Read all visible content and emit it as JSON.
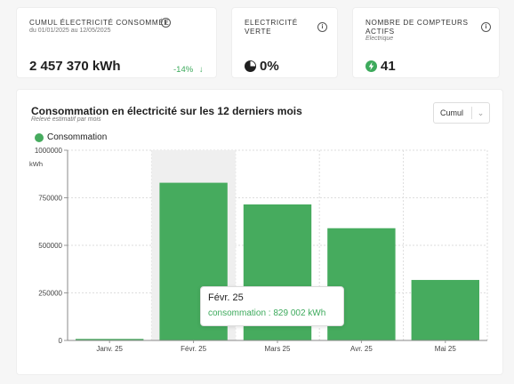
{
  "kpis": {
    "consumption": {
      "title": "CUMUL ÉLECTRICITÉ CONSOMMÉE",
      "subtitle": "du 01/01/2025 au 12/05/2025",
      "value": "2 457 370 kWh",
      "delta": "-14%",
      "delta_arrow": "↓"
    },
    "green": {
      "title_line1": "ELECTRICITÉ",
      "title_line2": "VERTE",
      "value": "0%"
    },
    "meters": {
      "title_line1": "NOMBRE DE COMPTEURS",
      "title_line2": "ACTIFS",
      "subtitle": "Electrique",
      "value": "41"
    },
    "info_glyph": "i"
  },
  "chart_section": {
    "title": "Consommation en électricité sur les 12 derniers mois",
    "subtitle": "Relevé estimatif par mois",
    "select_value": "Cumul",
    "select_chevron": "⌄",
    "legend_label": "Consommation",
    "tooltip": {
      "title": "Févr. 25",
      "line": "consommation : 829 002 kWh"
    }
  },
  "colors": {
    "bar": "#46ab5e",
    "accent_green": "#3daa5c",
    "highlight": "#efefef"
  },
  "chart_data": {
    "type": "bar",
    "categories": [
      "Janv. 25",
      "Févr. 25",
      "Mars 25",
      "Avr. 25",
      "Mai 25"
    ],
    "series": [
      {
        "name": "Consommation",
        "values": [
          8000,
          829002,
          715000,
          590000,
          318000
        ]
      }
    ],
    "ylabel": "kWh",
    "ylim": [
      0,
      1000000
    ],
    "yticks": [
      0,
      250000,
      500000,
      750000,
      1000000
    ],
    "ytick_labels": [
      "0",
      "250000",
      "500000",
      "750000",
      "1000000"
    ],
    "highlighted_category": "Févr. 25",
    "grid": true
  }
}
